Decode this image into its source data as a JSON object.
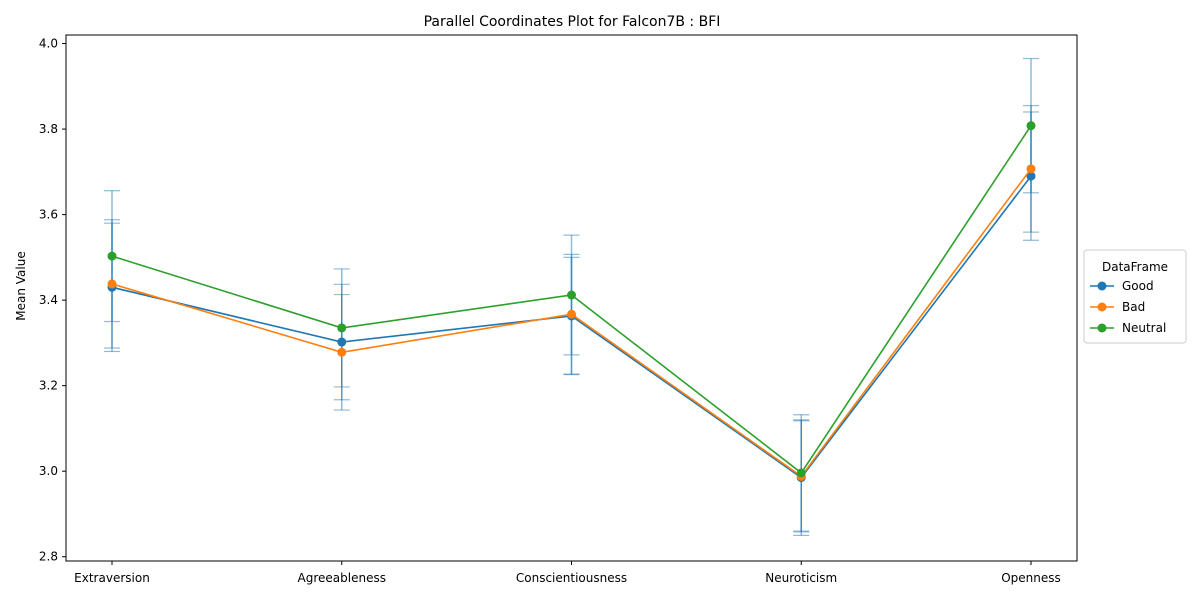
{
  "chart_data": {
    "type": "line",
    "title": "Parallel Coordinates Plot for Falcon7B : BFI",
    "xlabel": "",
    "ylabel": "Mean Value",
    "categories": [
      "Extraversion",
      "Agreeableness",
      "Conscientiousness",
      "Neuroticism",
      "Openness"
    ],
    "ylim": [
      2.79,
      4.02
    ],
    "yticks": [
      2.8,
      3.0,
      3.2,
      3.4,
      3.6,
      3.8,
      4.0
    ],
    "ytick_labels": [
      "2.8",
      "3.0",
      "3.2",
      "3.4",
      "3.6",
      "3.8",
      "4.0"
    ],
    "grid": false,
    "legend": {
      "title": "DataFrame",
      "placement": "outside-right"
    },
    "series": [
      {
        "name": "Good",
        "color": "#1f77b4",
        "values": [
          3.43,
          3.302,
          3.363,
          2.985,
          3.69
        ],
        "err": [
          0.15,
          0.135,
          0.137,
          0.135,
          0.15
        ]
      },
      {
        "name": "Bad",
        "color": "#ff7f0e",
        "values": [
          3.438,
          3.278,
          3.367,
          2.988,
          3.707
        ],
        "err": [
          0.15,
          0.135,
          0.14,
          0.13,
          0.148
        ]
      },
      {
        "name": "Neutral",
        "color": "#2ca02c",
        "values": [
          3.503,
          3.335,
          3.412,
          2.996,
          3.808
        ],
        "err": [
          0.153,
          0.138,
          0.14,
          0.136,
          0.157
        ]
      }
    ]
  }
}
